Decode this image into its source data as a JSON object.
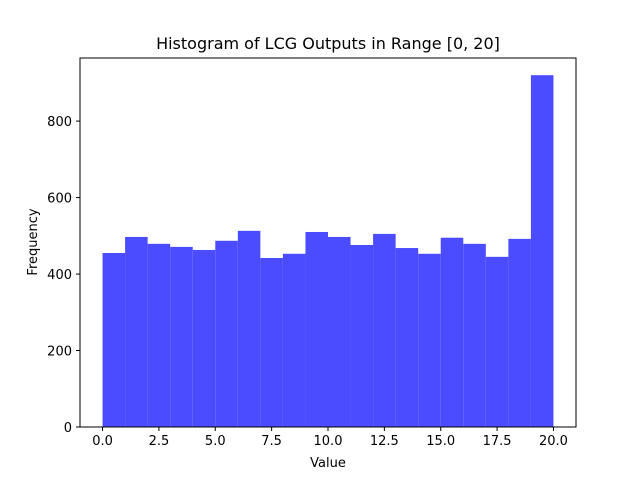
{
  "chart_data": {
    "type": "bar",
    "title": "Histogram of LCG Outputs in Range [0, 20]",
    "xlabel": "Value",
    "ylabel": "Frequency",
    "bar_color": "#4b4bff",
    "xlim": [
      -1,
      21
    ],
    "ylim": [
      0,
      965
    ],
    "x_ticks": [
      0,
      2.5,
      5,
      7.5,
      10,
      12.5,
      15,
      17.5,
      20
    ],
    "x_tick_labels": [
      "0.0",
      "2.5",
      "5.0",
      "7.5",
      "10.0",
      "12.5",
      "15.0",
      "17.5",
      "20.0"
    ],
    "y_ticks": [
      0,
      200,
      400,
      600,
      800
    ],
    "y_tick_labels": [
      "0",
      "200",
      "400",
      "600",
      "800"
    ],
    "bins": [
      {
        "start": 0,
        "end": 1,
        "value": 455
      },
      {
        "start": 1,
        "end": 2,
        "value": 497
      },
      {
        "start": 2,
        "end": 3,
        "value": 479
      },
      {
        "start": 3,
        "end": 4,
        "value": 471
      },
      {
        "start": 4,
        "end": 5,
        "value": 463
      },
      {
        "start": 5,
        "end": 6,
        "value": 487
      },
      {
        "start": 6,
        "end": 7,
        "value": 513
      },
      {
        "start": 7,
        "end": 8,
        "value": 442
      },
      {
        "start": 8,
        "end": 9,
        "value": 453
      },
      {
        "start": 9,
        "end": 10,
        "value": 510
      },
      {
        "start": 10,
        "end": 11,
        "value": 497
      },
      {
        "start": 11,
        "end": 12,
        "value": 476
      },
      {
        "start": 12,
        "end": 13,
        "value": 505
      },
      {
        "start": 13,
        "end": 14,
        "value": 468
      },
      {
        "start": 14,
        "end": 15,
        "value": 453
      },
      {
        "start": 15,
        "end": 16,
        "value": 495
      },
      {
        "start": 16,
        "end": 17,
        "value": 479
      },
      {
        "start": 17,
        "end": 18,
        "value": 445
      },
      {
        "start": 18,
        "end": 19,
        "value": 492
      },
      {
        "start": 19,
        "end": 20,
        "value": 920
      }
    ]
  }
}
